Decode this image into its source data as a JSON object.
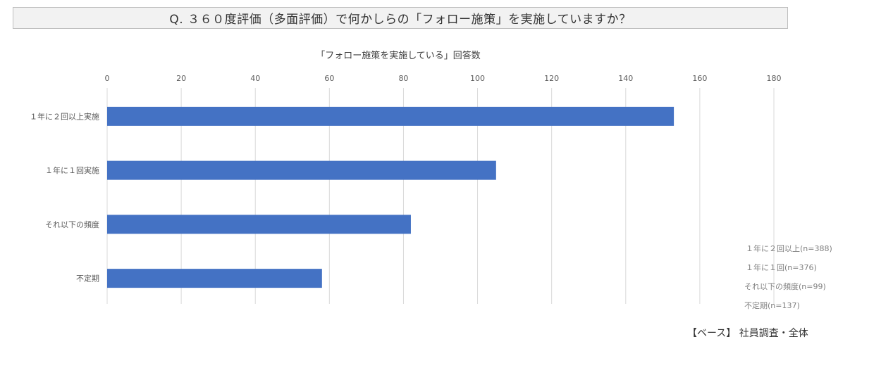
{
  "question": "Q. ３６０度評価（多面評価）で何かしらの「フォロー施策」を実施していますか？",
  "base_note": "【ベース】 社員調査・全体",
  "chart_data": {
    "type": "bar",
    "orientation": "horizontal",
    "title": "「フォロー施策を実施している」回答数",
    "xlabel": "",
    "ylabel": "",
    "xlim": [
      0,
      180
    ],
    "x_ticks": [
      "0",
      "20",
      "40",
      "60",
      "80",
      "100",
      "120",
      "140",
      "160",
      "180"
    ],
    "grid": true,
    "categories": [
      "１年に２回以上実施",
      "１年に１回実施",
      "それ以下の頻度",
      "不定期"
    ],
    "values": [
      153,
      105,
      82,
      58
    ],
    "bar_color": "#4472c4",
    "annotations": [
      "１年に２回以上(n=388)",
      "１年に１回(n=376)",
      "それ以下の頻度(n=99)",
      "不定期(n=137)"
    ]
  }
}
